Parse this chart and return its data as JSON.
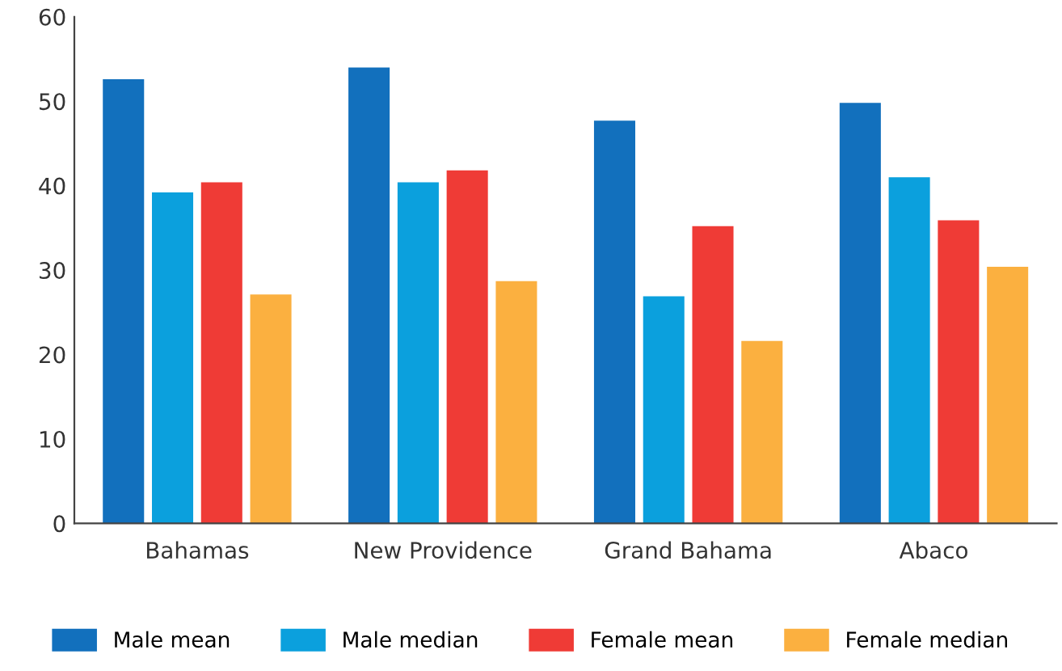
{
  "chart_data": {
    "type": "bar",
    "categories": [
      "Bahamas",
      "New Providence",
      "Grand Bahama",
      "Abaco"
    ],
    "series": [
      {
        "name": "Male mean",
        "color": "#1270bd",
        "values": [
          52.6,
          54,
          47.7,
          49.8
        ]
      },
      {
        "name": "Male median",
        "color": "#0ba0dd",
        "values": [
          39.2,
          40.4,
          26.9,
          41
        ]
      },
      {
        "name": "Female mean",
        "color": "#ef3b36",
        "values": [
          40.4,
          41.8,
          35.2,
          35.9
        ]
      },
      {
        "name": "Female median",
        "color": "#fbb040",
        "values": [
          27.1,
          28.7,
          21.6,
          30.4
        ]
      }
    ],
    "ylim": [
      0,
      60
    ],
    "yticks": [
      0,
      10,
      20,
      30,
      40,
      50,
      60
    ],
    "grid": false,
    "legend": "bottom"
  }
}
